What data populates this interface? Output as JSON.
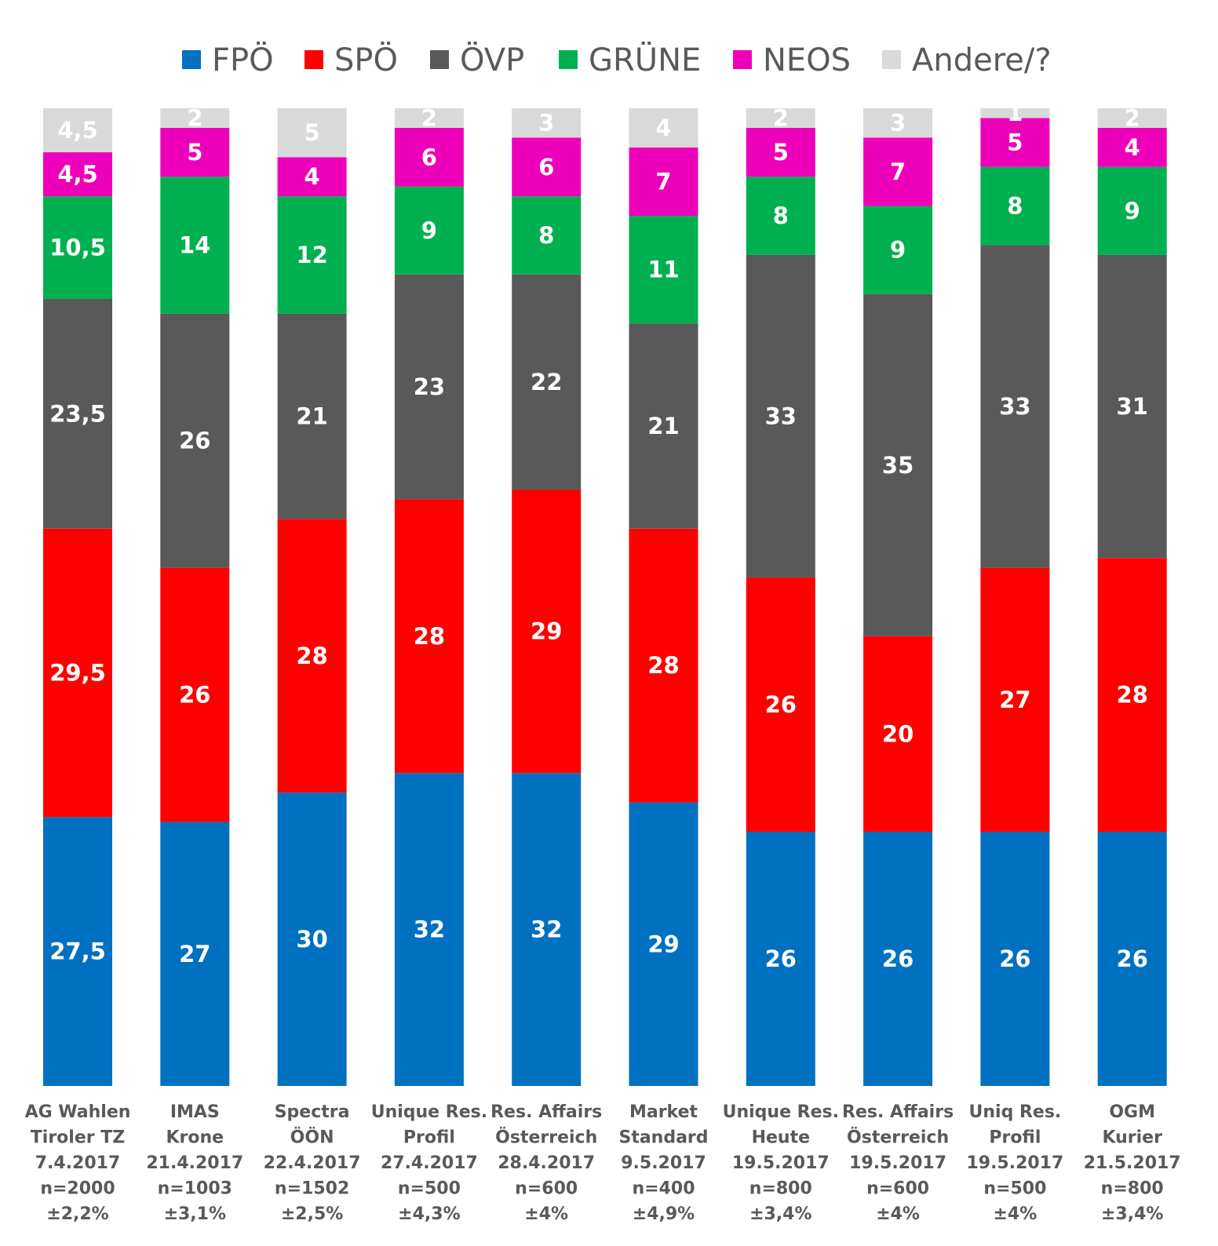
{
  "chart_data": {
    "type": "bar",
    "stacked": true,
    "legend_position": "top",
    "grid": false,
    "ylim": [
      0,
      100
    ],
    "categories": [
      [
        "AG Wahlen",
        "Tiroler TZ",
        "7.4.2017",
        "n=2000",
        "±2,2%"
      ],
      [
        "IMAS",
        "Krone",
        "21.4.2017",
        "n=1003",
        "±3,1%"
      ],
      [
        "Spectra",
        "ÖÖN",
        "22.4.2017",
        "n=1502",
        "±2,5%"
      ],
      [
        "Unique Res.",
        "Profil",
        "27.4.2017",
        "n=500",
        "±4,3%"
      ],
      [
        "Res. Affairs",
        "Österreich",
        "28.4.2017",
        "n=600",
        "±4%"
      ],
      [
        "Market",
        "Standard",
        "9.5.2017",
        "n=400",
        "±4,9%"
      ],
      [
        "Unique Res.",
        "Heute",
        "19.5.2017",
        "n=800",
        "±3,4%"
      ],
      [
        "Res. Affairs",
        "Österreich",
        "19.5.2017",
        "n=600",
        "±4%"
      ],
      [
        "Uniq Res.",
        "Profil",
        "19.5.2017",
        "n=500",
        "±4%"
      ],
      [
        "OGM",
        "Kurier",
        "21.5.2017",
        "n=800",
        "±3,4%"
      ]
    ],
    "series": [
      {
        "name": "FPÖ",
        "color": "#0070C0",
        "values": [
          27.5,
          27,
          30,
          32,
          32,
          29,
          26,
          26,
          26,
          26
        ],
        "labels": [
          "27,5",
          "27",
          "30",
          "32",
          "32",
          "29",
          "26",
          "26",
          "26",
          "26"
        ]
      },
      {
        "name": "SPÖ",
        "color": "#FF0000",
        "values": [
          29.5,
          26,
          28,
          28,
          29,
          28,
          26,
          20,
          27,
          28
        ],
        "labels": [
          "29,5",
          "26",
          "28",
          "28",
          "29",
          "28",
          "26",
          "20",
          "27",
          "28"
        ]
      },
      {
        "name": "ÖVP",
        "color": "#595959",
        "values": [
          23.5,
          26,
          21,
          23,
          22,
          21,
          33,
          35,
          33,
          31
        ],
        "labels": [
          "23,5",
          "26",
          "21",
          "23",
          "22",
          "21",
          "33",
          "35",
          "33",
          "31"
        ]
      },
      {
        "name": "GRÜNE",
        "color": "#00B050",
        "values": [
          10.5,
          14,
          12,
          9,
          8,
          11,
          8,
          9,
          8,
          9
        ],
        "labels": [
          "10,5",
          "14",
          "12",
          "9",
          "8",
          "11",
          "8",
          "9",
          "8",
          "9"
        ]
      },
      {
        "name": "NEOS",
        "color": "#EE00BB",
        "values": [
          4.5,
          5,
          4,
          6,
          6,
          7,
          5,
          7,
          5,
          4
        ],
        "labels": [
          "4,5",
          "5",
          "4",
          "6",
          "6",
          "7",
          "5",
          "7",
          "5",
          "4"
        ]
      },
      {
        "name": "Andere/?",
        "color": "#D9D9D9",
        "values": [
          4.5,
          2,
          5,
          2,
          3,
          4,
          2,
          3,
          1,
          2
        ],
        "labels": [
          "4,5",
          "2",
          "5",
          "2",
          "3",
          "4",
          "2",
          "3",
          "1",
          "2"
        ]
      }
    ]
  }
}
